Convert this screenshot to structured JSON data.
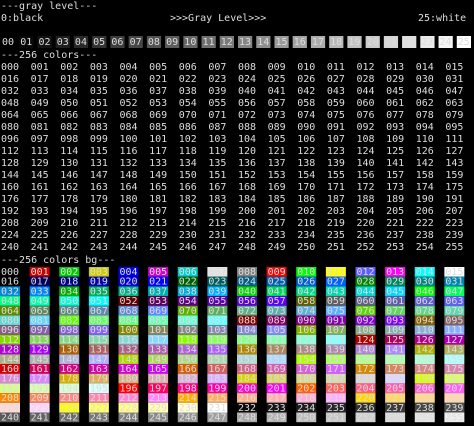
{
  "header": {
    "title": "---gray level---",
    "left": "0:black",
    "center": ">>>Gray Level>>>",
    "right": "25:white"
  },
  "gray_levels": [
    "00",
    "01",
    "02",
    "03",
    "04",
    "05",
    "06",
    "07",
    "08",
    "09",
    "10",
    "11",
    "12",
    "13",
    "14",
    "15",
    "16",
    "17",
    "18",
    "19",
    "20",
    "21",
    "22",
    "23",
    "24",
    "25"
  ],
  "fg_section": {
    "title": "---256 colors---",
    "cells": [
      "000",
      "001",
      "002",
      "003",
      "004",
      "005",
      "006",
      "007",
      "008",
      "009",
      "010",
      "011",
      "012",
      "013",
      "014",
      "015",
      "016",
      "017",
      "018",
      "019",
      "020",
      "021",
      "022",
      "023",
      "024",
      "025",
      "026",
      "027",
      "028",
      "029",
      "030",
      "031",
      "032",
      "033",
      "034",
      "035",
      "036",
      "037",
      "038",
      "039",
      "040",
      "041",
      "042",
      "043",
      "044",
      "045",
      "046",
      "047",
      "048",
      "049",
      "050",
      "051",
      "052",
      "053",
      "054",
      "055",
      "056",
      "057",
      "058",
      "059",
      "060",
      "061",
      "062",
      "063",
      "064",
      "065",
      "066",
      "067",
      "068",
      "069",
      "070",
      "071",
      "072",
      "073",
      "074",
      "075",
      "076",
      "077",
      "078",
      "079",
      "080",
      "081",
      "082",
      "083",
      "084",
      "085",
      "086",
      "087",
      "088",
      "089",
      "090",
      "091",
      "092",
      "093",
      "094",
      "095",
      "096",
      "097",
      "098",
      "099",
      "100",
      "101",
      "102",
      "103",
      "104",
      "105",
      "106",
      "107",
      "108",
      "109",
      "110",
      "111",
      "112",
      "113",
      "114",
      "115",
      "116",
      "117",
      "118",
      "119",
      "120",
      "121",
      "122",
      "123",
      "124",
      "125",
      "126",
      "127",
      "128",
      "129",
      "130",
      "131",
      "132",
      "133",
      "134",
      "135",
      "136",
      "137",
      "138",
      "139",
      "140",
      "141",
      "142",
      "143",
      "144",
      "145",
      "146",
      "147",
      "148",
      "149",
      "150",
      "151",
      "152",
      "153",
      "154",
      "155",
      "156",
      "157",
      "158",
      "159",
      "160",
      "161",
      "162",
      "163",
      "164",
      "165",
      "166",
      "167",
      "168",
      "169",
      "170",
      "171",
      "172",
      "173",
      "174",
      "175",
      "176",
      "177",
      "178",
      "179",
      "180",
      "181",
      "182",
      "183",
      "184",
      "185",
      "186",
      "187",
      "188",
      "189",
      "190",
      "191",
      "192",
      "193",
      "194",
      "195",
      "196",
      "197",
      "198",
      "199",
      "200",
      "201",
      "202",
      "203",
      "204",
      "205",
      "206",
      "207",
      "208",
      "209",
      "210",
      "211",
      "212",
      "213",
      "214",
      "215",
      "216",
      "217",
      "218",
      "219",
      "220",
      "221",
      "222",
      "223",
      "224",
      "225",
      "226",
      "227",
      "228",
      "229",
      "230",
      "231",
      "232",
      "233",
      "234",
      "235",
      "236",
      "237",
      "238",
      "239",
      "240",
      "241",
      "242",
      "243",
      "244",
      "245",
      "246",
      "247",
      "248",
      "249",
      "250",
      "251",
      "252",
      "253",
      "254",
      "255"
    ]
  },
  "bg_section": {
    "title": "---256 colors bg---",
    "cells": [
      "000",
      "001",
      "002",
      "003",
      "004",
      "005",
      "006",
      "007",
      "008",
      "009",
      "010",
      "011",
      "012",
      "013",
      "014",
      "015",
      "016",
      "017",
      "018",
      "019",
      "020",
      "021",
      "022",
      "023",
      "024",
      "025",
      "026",
      "027",
      "028",
      "029",
      "030",
      "031",
      "032",
      "033",
      "034",
      "035",
      "036",
      "037",
      "038",
      "039",
      "040",
      "041",
      "042",
      "043",
      "044",
      "045",
      "046",
      "047",
      "048",
      "049",
      "050",
      "051",
      "052",
      "053",
      "054",
      "055",
      "056",
      "057",
      "058",
      "059",
      "060",
      "061",
      "062",
      "063",
      "064",
      "065",
      "066",
      "067",
      "068",
      "069",
      "070",
      "071",
      "072",
      "073",
      "074",
      "075",
      "076",
      "077",
      "078",
      "079",
      "080",
      "081",
      "082",
      "083",
      "084",
      "085",
      "086",
      "087",
      "088",
      "089",
      "090",
      "091",
      "092",
      "093",
      "094",
      "095",
      "096",
      "097",
      "098",
      "099",
      "100",
      "101",
      "102",
      "103",
      "104",
      "105",
      "106",
      "107",
      "108",
      "109",
      "110",
      "111",
      "112",
      "113",
      "114",
      "115",
      "116",
      "117",
      "118",
      "119",
      "120",
      "121",
      "122",
      "123",
      "124",
      "125",
      "126",
      "127",
      "128",
      "129",
      "130",
      "131",
      "132",
      "133",
      "134",
      "135",
      "136",
      "137",
      "138",
      "139",
      "140",
      "141",
      "142",
      "143",
      "144",
      "145",
      "146",
      "147",
      "148",
      "149",
      "150",
      "151",
      "152",
      "153",
      "154",
      "155",
      "156",
      "157",
      "158",
      "159",
      "160",
      "161",
      "162",
      "163",
      "164",
      "165",
      "166",
      "167",
      "168",
      "169",
      "170",
      "171",
      "172",
      "173",
      "174",
      "175",
      "176",
      "177",
      "178",
      "179",
      "180",
      "181",
      "182",
      "183",
      "184",
      "185",
      "186",
      "187",
      "188",
      "189",
      "190",
      "191",
      "192",
      "193",
      "194",
      "195",
      "196",
      "197",
      "198",
      "199",
      "200",
      "201",
      "202",
      "203",
      "204",
      "205",
      "206",
      "207",
      "208",
      "209",
      "210",
      "211",
      "212",
      "213",
      "214",
      "215",
      "216",
      "217",
      "218",
      "219",
      "220",
      "221",
      "222",
      "223",
      "224",
      "225",
      "226",
      "227",
      "228",
      "229",
      "230",
      "231",
      "232",
      "233",
      "234",
      "235",
      "236",
      "237",
      "238",
      "239",
      "240",
      "241",
      "242",
      "243",
      "244",
      "245",
      "246",
      "247",
      "248",
      "249",
      "250",
      "251",
      "252",
      "253",
      "254",
      "255"
    ]
  }
}
